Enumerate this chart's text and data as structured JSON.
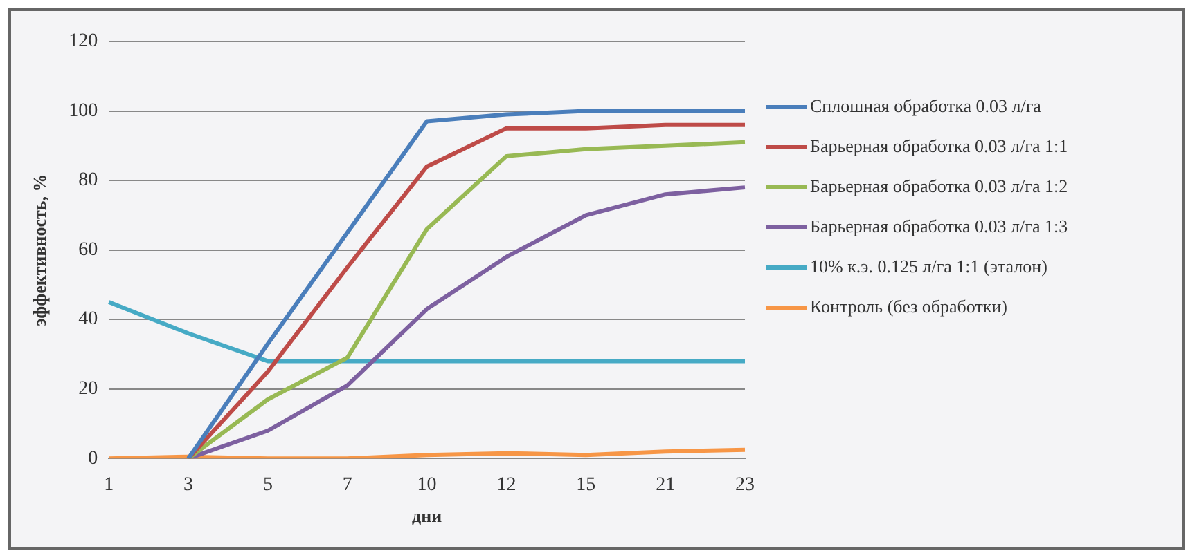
{
  "chart_data": {
    "type": "line",
    "xlabel": "дни",
    "ylabel": "эффективность, %",
    "categories": [
      "1",
      "3",
      "5",
      "7",
      "10",
      "12",
      "15",
      "21",
      "23"
    ],
    "ylim": [
      0,
      120
    ],
    "yticks": [
      0,
      20,
      40,
      60,
      80,
      100,
      120
    ],
    "grid": "y",
    "legend": "right",
    "marker": "none",
    "line_style": "solid",
    "series": [
      {
        "name": "Сплошная обработка 0.03 л/га",
        "color": "#4a7ebb",
        "values": [
          null,
          0,
          33,
          65,
          97,
          99,
          100,
          100,
          100
        ]
      },
      {
        "name": "Барьерная обработка 0.03 л/га 1:1",
        "color": "#be4b48",
        "values": [
          null,
          0,
          25,
          55,
          84,
          95,
          95,
          96,
          96
        ]
      },
      {
        "name": "Барьерная обработка  0.03 л/га 1:2",
        "color": "#98b954",
        "values": [
          null,
          0,
          17,
          29,
          66,
          87,
          89,
          90,
          91
        ]
      },
      {
        "name": "Барьерная обработка  0.03 л/га 1:3",
        "color": "#7d60a0",
        "values": [
          null,
          0,
          8,
          21,
          43,
          58,
          70,
          76,
          78
        ]
      },
      {
        "name": "10% к.э. 0.125 л/га 1:1 (эталон)",
        "color": "#46aac5",
        "values": [
          45,
          36,
          28,
          28,
          28,
          28,
          28,
          28,
          28
        ]
      },
      {
        "name": "Контроль (без обработки)",
        "color": "#f79646",
        "values": [
          0,
          0.5,
          0,
          0,
          1,
          1.5,
          1,
          2,
          2.5
        ]
      }
    ]
  }
}
